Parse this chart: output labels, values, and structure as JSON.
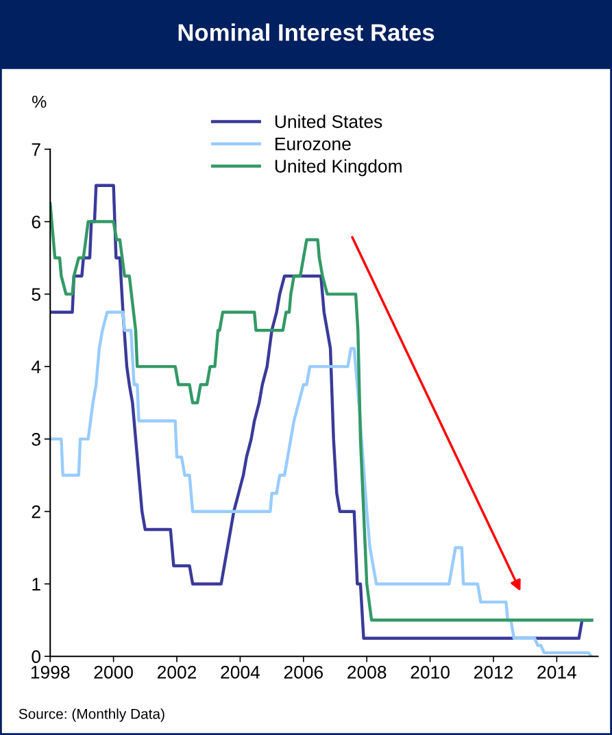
{
  "chart_data": {
    "type": "line",
    "title": "Nominal Interest Rates",
    "ylabel": "%",
    "xlim": [
      1998,
      2015.3
    ],
    "xticks": [
      1998,
      2000,
      2002,
      2004,
      2006,
      2008,
      2010,
      2012,
      2014
    ],
    "ylim": [
      0,
      7
    ],
    "yticks": [
      0,
      1,
      2,
      3,
      4,
      5,
      6,
      7
    ],
    "grid": false,
    "legend": "top",
    "marker": "none",
    "line_style": "solid",
    "annotations": [
      "Source: (Monthly Data)"
    ],
    "series": [
      {
        "name": "United States",
        "color": "#3a3a9a",
        "x": [
          1998.0,
          1998.7,
          1998.75,
          1999.0,
          1999.05,
          1999.25,
          1999.3,
          1999.4,
          1999.45,
          2000.0,
          2000.08,
          2000.2,
          2000.3,
          2000.42,
          2000.5,
          2000.6,
          2000.7,
          2000.8,
          2000.9,
          2001.0,
          2001.8,
          2001.9,
          2002.4,
          2002.5,
          2003.4,
          2003.5,
          2003.6,
          2003.7,
          2003.8,
          2003.95,
          2004.1,
          2004.2,
          2004.35,
          2004.45,
          2004.6,
          2004.7,
          2004.85,
          2005.0,
          2005.15,
          2005.25,
          2005.4,
          2006.55,
          2006.65,
          2006.75,
          2006.85,
          2006.95,
          2007.05,
          2007.15,
          2007.6,
          2007.7,
          2007.8,
          2007.9,
          2014.7,
          2014.8,
          2015.1
        ],
        "values": [
          4.75,
          4.75,
          5.25,
          5.25,
          5.5,
          5.5,
          6.0,
          6.0,
          6.5,
          6.5,
          5.5,
          5.5,
          4.75,
          4.0,
          3.75,
          3.5,
          3.0,
          2.5,
          2.0,
          1.75,
          1.75,
          1.25,
          1.25,
          1.0,
          1.0,
          1.25,
          1.5,
          1.75,
          2.0,
          2.25,
          2.5,
          2.75,
          3.0,
          3.25,
          3.5,
          3.75,
          4.0,
          4.5,
          4.75,
          5.0,
          5.25,
          5.25,
          4.75,
          4.5,
          4.25,
          3.0,
          2.25,
          2.0,
          2.0,
          1.0,
          1.0,
          0.25,
          0.25,
          0.5,
          0.5
        ]
      },
      {
        "name": "Eurozone",
        "color": "#99ccff",
        "x": [
          1998.0,
          1998.35,
          1998.4,
          1998.9,
          1998.95,
          1999.2,
          1999.35,
          1999.45,
          1999.55,
          1999.65,
          1999.8,
          2000.3,
          2000.35,
          2000.55,
          2000.65,
          2000.75,
          2000.8,
          2001.95,
          2002.0,
          2002.15,
          2002.25,
          2002.4,
          2002.5,
          2004.95,
          2005.0,
          2005.15,
          2005.25,
          2005.4,
          2005.5,
          2005.6,
          2005.7,
          2005.85,
          2006.0,
          2006.1,
          2006.2,
          2007.4,
          2007.5,
          2007.6,
          2007.75,
          2008.0,
          2008.1,
          2008.3,
          2010.6,
          2010.7,
          2010.8,
          2011.0,
          2011.05,
          2011.5,
          2011.6,
          2012.4,
          2012.45,
          2012.55,
          2012.65,
          2013.3,
          2013.4,
          2013.5,
          2013.6,
          2015.0,
          2015.1
        ],
        "values": [
          3.0,
          3.0,
          2.5,
          2.5,
          3.0,
          3.0,
          3.5,
          3.75,
          4.25,
          4.5,
          4.75,
          4.75,
          4.5,
          4.5,
          3.75,
          3.75,
          3.25,
          3.25,
          2.75,
          2.75,
          2.5,
          2.5,
          2.0,
          2.0,
          2.25,
          2.25,
          2.5,
          2.5,
          2.75,
          3.0,
          3.25,
          3.5,
          3.75,
          3.75,
          4.0,
          4.0,
          4.25,
          4.25,
          3.5,
          2.0,
          1.5,
          1.0,
          1.0,
          1.25,
          1.5,
          1.5,
          1.0,
          1.0,
          0.75,
          0.75,
          0.5,
          0.5,
          0.25,
          0.25,
          0.15,
          0.15,
          0.05,
          0.05,
          0.0
        ]
      },
      {
        "name": "United Kingdom",
        "color": "#339966",
        "x": [
          1998.0,
          1998.05,
          1998.15,
          1998.3,
          1998.35,
          1998.5,
          1998.7,
          1998.75,
          1998.9,
          1999.05,
          1999.2,
          2000.0,
          2000.1,
          2000.2,
          2000.35,
          2000.5,
          2000.7,
          2000.75,
          2001.95,
          2002.05,
          2002.4,
          2002.5,
          2002.65,
          2002.75,
          2002.95,
          2003.05,
          2003.2,
          2003.3,
          2003.35,
          2003.45,
          2004.45,
          2004.5,
          2005.35,
          2005.45,
          2005.55,
          2005.6,
          2005.7,
          2005.9,
          2006.0,
          2006.1,
          2006.45,
          2006.5,
          2006.6,
          2006.75,
          2007.65,
          2007.72,
          2007.8,
          2007.9,
          2008.0,
          2008.15,
          2015.1
        ],
        "values": [
          6.25,
          6.0,
          5.5,
          5.5,
          5.25,
          5.0,
          5.0,
          5.25,
          5.5,
          5.5,
          6.0,
          6.0,
          5.75,
          5.75,
          5.25,
          5.25,
          4.5,
          4.0,
          4.0,
          3.75,
          3.75,
          3.5,
          3.5,
          3.75,
          3.75,
          4.0,
          4.0,
          4.5,
          4.5,
          4.75,
          4.75,
          4.5,
          4.5,
          4.75,
          4.75,
          5.0,
          5.25,
          5.25,
          5.5,
          5.75,
          5.75,
          5.5,
          5.25,
          5.0,
          5.0,
          4.5,
          3.0,
          2.0,
          1.0,
          0.5,
          0.5
        ]
      }
    ]
  }
}
